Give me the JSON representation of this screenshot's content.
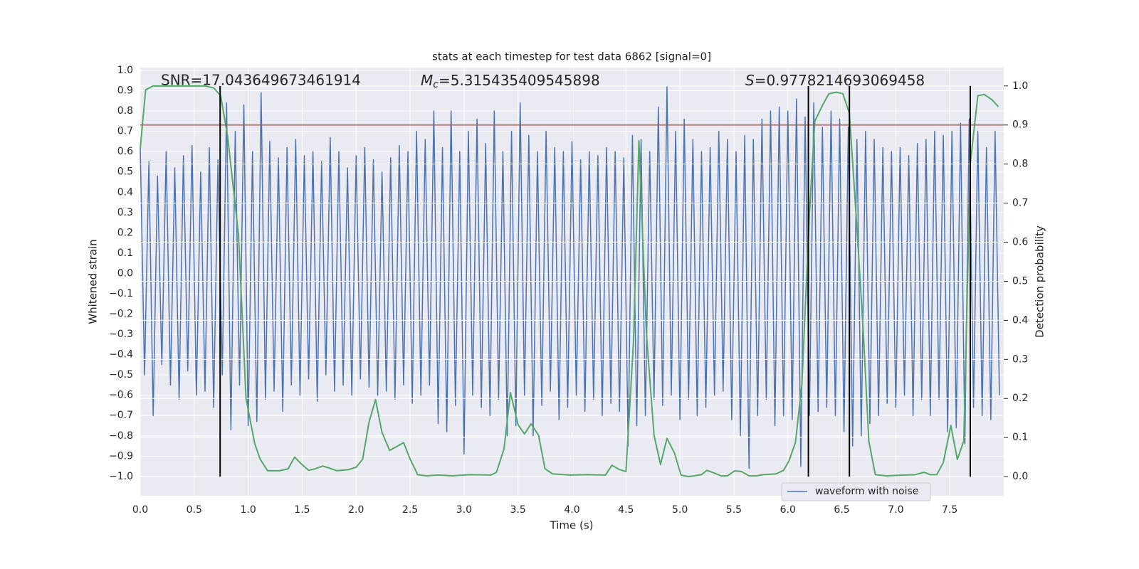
{
  "chart_data": {
    "type": "line",
    "title": "stats at each timestep for test data 6862 [signal=0]",
    "xlabel": "Time (s)",
    "ylabel": "Whitened strain",
    "y2label": "Detection probability",
    "grid": true,
    "legend": "lower right",
    "xlim": [
      0,
      8
    ],
    "ylim": [
      -1.095,
      1.014
    ],
    "y2lim": [
      -0.049,
      1.047
    ],
    "xticks": [
      {
        "value": 0,
        "label": "0.0"
      },
      {
        "value": 0.5,
        "label": "0.5"
      },
      {
        "value": 1,
        "label": "1.0"
      },
      {
        "value": 1.5,
        "label": "1.5"
      },
      {
        "value": 2,
        "label": "2.0"
      },
      {
        "value": 2.5,
        "label": "2.5"
      },
      {
        "value": 3,
        "label": "3.0"
      },
      {
        "value": 3.5,
        "label": "3.5"
      },
      {
        "value": 4,
        "label": "4.0"
      },
      {
        "value": 4.5,
        "label": "4.5"
      },
      {
        "value": 5,
        "label": "5.0"
      },
      {
        "value": 5.5,
        "label": "5.5"
      },
      {
        "value": 6,
        "label": "6.0"
      },
      {
        "value": 6.5,
        "label": "6.5"
      },
      {
        "value": 7,
        "label": "7.0"
      },
      {
        "value": 7.5,
        "label": "7.5"
      }
    ],
    "yticks": [
      {
        "value": -1,
        "label": "−1.0"
      },
      {
        "value": -0.9,
        "label": "−0.9"
      },
      {
        "value": -0.8,
        "label": "−0.8"
      },
      {
        "value": -0.7,
        "label": "−0.7"
      },
      {
        "value": -0.6,
        "label": "−0.6"
      },
      {
        "value": -0.5,
        "label": "−0.5"
      },
      {
        "value": -0.4,
        "label": "−0.4"
      },
      {
        "value": -0.3,
        "label": "−0.3"
      },
      {
        "value": -0.2,
        "label": "−0.2"
      },
      {
        "value": -0.1,
        "label": "−0.1"
      },
      {
        "value": 0,
        "label": "0.0"
      },
      {
        "value": 0.1,
        "label": "0.1"
      },
      {
        "value": 0.2,
        "label": "0.2"
      },
      {
        "value": 0.3,
        "label": "0.3"
      },
      {
        "value": 0.4,
        "label": "0.4"
      },
      {
        "value": 0.5,
        "label": "0.5"
      },
      {
        "value": 0.6,
        "label": "0.6"
      },
      {
        "value": 0.7,
        "label": "0.7"
      },
      {
        "value": 0.8,
        "label": "0.8"
      },
      {
        "value": 0.9,
        "label": "0.9"
      },
      {
        "value": 1,
        "label": "1.0"
      }
    ],
    "y2ticks": [
      {
        "value": 0,
        "label": "0.0"
      },
      {
        "value": 0.1,
        "label": "0.1"
      },
      {
        "value": 0.2,
        "label": "0.2"
      },
      {
        "value": 0.3,
        "label": "0.3"
      },
      {
        "value": 0.4,
        "label": "0.4"
      },
      {
        "value": 0.5,
        "label": "0.5"
      },
      {
        "value": 0.6,
        "label": "0.6"
      },
      {
        "value": 0.7,
        "label": "0.7"
      },
      {
        "value": 0.8,
        "label": "0.8"
      },
      {
        "value": 0.9,
        "label": "0.9"
      },
      {
        "value": 1,
        "label": "1.0"
      }
    ],
    "annotations": [
      {
        "text": "SNR=17.043649673461914"
      },
      {
        "symbol": "M",
        "subscript": "c",
        "text": "=5.315435409545898"
      },
      {
        "symbol": "S",
        "text": "=0.9778214693069458"
      }
    ],
    "threshold": {
      "y": 0.9,
      "axis": "y2",
      "color": "#c44e52"
    },
    "vlines": {
      "x": [
        0.74,
        6.19,
        6.57,
        7.69
      ],
      "ymin": 0,
      "ymax": 1,
      "axis": "y2",
      "color": "#000000"
    },
    "series": [
      {
        "name": "waveform with noise",
        "color": "#4c72b0",
        "x": [
          0,
          0.04,
          0.08,
          0.12,
          0.16,
          0.2,
          0.24,
          0.28,
          0.32,
          0.36,
          0.4,
          0.44,
          0.48,
          0.52,
          0.56,
          0.6,
          0.64,
          0.68,
          0.72,
          0.76,
          0.8,
          0.84,
          0.88,
          0.92,
          0.96,
          1,
          1.04,
          1.08,
          1.12,
          1.16,
          1.2,
          1.24,
          1.28,
          1.32,
          1.36,
          1.4,
          1.44,
          1.48,
          1.52,
          1.56,
          1.6,
          1.64,
          1.68,
          1.72,
          1.76,
          1.8,
          1.84,
          1.88,
          1.92,
          1.96,
          2,
          2.04,
          2.08,
          2.12,
          2.16,
          2.2,
          2.24,
          2.28,
          2.32,
          2.36,
          2.4,
          2.44,
          2.48,
          2.52,
          2.56,
          2.6,
          2.64,
          2.68,
          2.72,
          2.76,
          2.8,
          2.84,
          2.88,
          2.92,
          2.96,
          3,
          3.04,
          3.08,
          3.12,
          3.16,
          3.2,
          3.24,
          3.28,
          3.32,
          3.36,
          3.4,
          3.44,
          3.48,
          3.52,
          3.56,
          3.6,
          3.64,
          3.68,
          3.72,
          3.76,
          3.8,
          3.84,
          3.88,
          3.92,
          3.96,
          4,
          4.04,
          4.08,
          4.12,
          4.16,
          4.2,
          4.24,
          4.28,
          4.32,
          4.36,
          4.4,
          4.44,
          4.48,
          4.52,
          4.56,
          4.6,
          4.64,
          4.68,
          4.72,
          4.76,
          4.8,
          4.84,
          4.88,
          4.92,
          4.96,
          5,
          5.04,
          5.08,
          5.12,
          5.16,
          5.2,
          5.24,
          5.28,
          5.32,
          5.36,
          5.4,
          5.44,
          5.48,
          5.52,
          5.56,
          5.6,
          5.64,
          5.68,
          5.72,
          5.76,
          5.8,
          5.84,
          5.88,
          5.92,
          5.96,
          6,
          6.04,
          6.08,
          6.12,
          6.16,
          6.2,
          6.24,
          6.28,
          6.32,
          6.36,
          6.4,
          6.44,
          6.48,
          6.52,
          6.56,
          6.6,
          6.64,
          6.68,
          6.72,
          6.76,
          6.8,
          6.84,
          6.88,
          6.92,
          6.96,
          7,
          7.04,
          7.08,
          7.12,
          7.16,
          7.2,
          7.24,
          7.28,
          7.32,
          7.36,
          7.4,
          7.44,
          7.48,
          7.52,
          7.56,
          7.6,
          7.64,
          7.68,
          7.72,
          7.76,
          7.8,
          7.84,
          7.88,
          7.92,
          7.96
        ],
        "values": [
          0.62,
          -0.5,
          0.55,
          -0.7,
          0.48,
          -0.45,
          0.6,
          -0.55,
          0.52,
          -0.62,
          0.58,
          -0.48,
          0.63,
          -0.6,
          0.5,
          -0.58,
          0.62,
          -0.66,
          0.56,
          -0.5,
          0.84,
          -0.77,
          0.7,
          -0.55,
          0.83,
          -0.75,
          0.6,
          -0.73,
          0.89,
          -0.62,
          0.65,
          -0.58,
          0.57,
          -0.68,
          0.62,
          -0.55,
          0.66,
          -0.6,
          0.58,
          -0.52,
          0.6,
          -0.63,
          0.55,
          -0.5,
          0.67,
          -0.58,
          0.6,
          -0.55,
          0.52,
          -0.6,
          0.58,
          -0.52,
          0.62,
          -0.56,
          0.56,
          -0.6,
          0.5,
          -0.58,
          0.57,
          -0.62,
          0.63,
          -0.55,
          0.6,
          -0.64,
          0.7,
          -0.6,
          0.66,
          -0.55,
          0.8,
          -0.74,
          0.62,
          -0.78,
          0.8,
          -0.65,
          0.6,
          -0.89,
          0.7,
          -0.6,
          0.76,
          -0.66,
          0.64,
          -0.7,
          0.8,
          -0.62,
          0.6,
          -0.8,
          0.7,
          -0.75,
          0.84,
          -0.6,
          0.68,
          -0.8,
          0.6,
          -0.65,
          0.7,
          -0.58,
          0.62,
          -0.72,
          0.6,
          -0.66,
          0.65,
          -0.6,
          0.56,
          -0.68,
          0.6,
          -0.62,
          0.58,
          -0.7,
          0.62,
          -0.64,
          0.6,
          -0.68,
          0.57,
          -0.85,
          0.68,
          -0.75,
          0.66,
          -0.7,
          0.6,
          -0.62,
          0.82,
          -0.65,
          0.92,
          -0.6,
          0.7,
          -0.72,
          0.76,
          -0.62,
          0.66,
          -0.7,
          0.6,
          -0.66,
          0.62,
          -0.6,
          0.7,
          -0.58,
          0.66,
          -0.72,
          0.6,
          -0.8,
          0.68,
          -0.96,
          0.66,
          -0.7,
          0.76,
          -0.62,
          0.8,
          -0.75,
          0.82,
          -0.7,
          0.8,
          -0.72,
          0.86,
          -0.95,
          0.77,
          -0.7,
          0.84,
          -0.68,
          0.72,
          -0.66,
          0.8,
          -0.7,
          0.76,
          -0.78,
          0.72,
          -0.85,
          0.66,
          -0.8,
          0.7,
          -0.74,
          0.66,
          -0.7,
          0.62,
          -0.64,
          0.6,
          -0.66,
          0.62,
          -0.6,
          0.58,
          -0.7,
          0.64,
          -0.62,
          0.66,
          -0.7,
          0.7,
          -0.62,
          0.68,
          -0.78,
          0.7,
          -0.76,
          0.74,
          -0.84,
          0.76,
          -0.66,
          0.7,
          -0.7,
          0.62,
          -0.72,
          0.7,
          -0.6
        ]
      },
      {
        "color": "#55a868",
        "axis": "y2",
        "x": [
          0,
          0.05,
          0.12,
          0.6,
          0.68,
          0.745,
          0.81,
          0.91,
          0.98,
          1.06,
          1.11,
          1.18,
          1.29,
          1.37,
          1.43,
          1.49,
          1.56,
          1.62,
          1.69,
          1.75,
          1.82,
          1.93,
          2,
          2.06,
          2.12,
          2.18,
          2.24,
          2.31,
          2.37,
          2.44,
          2.5,
          2.57,
          2.65,
          2.76,
          2.89,
          3.05,
          3.25,
          3.3,
          3.37,
          3.43,
          3.5,
          3.56,
          3.62,
          3.69,
          3.75,
          3.82,
          3.98,
          4.14,
          4.31,
          4.37,
          4.44,
          4.5,
          4.57,
          4.62,
          4.69,
          4.76,
          4.82,
          4.88,
          4.95,
          5.01,
          5.08,
          5.2,
          5.25,
          5.32,
          5.38,
          5.44,
          5.51,
          5.57,
          5.64,
          5.71,
          5.77,
          5.89,
          5.96,
          6.01,
          6.07,
          6.13,
          6.2,
          6.25,
          6.32,
          6.38,
          6.45,
          6.51,
          6.57,
          6.64,
          6.7,
          6.75,
          6.81,
          6.91,
          7.08,
          7.18,
          7.26,
          7.32,
          7.38,
          7.44,
          7.51,
          7.57,
          7.63,
          7.69,
          7.76,
          7.82,
          7.89,
          7.95
        ],
        "values": [
          0.84,
          0.99,
          1.0,
          1.0,
          0.995,
          0.975,
          0.87,
          0.62,
          0.2,
          0.085,
          0.045,
          0.015,
          0.015,
          0.02,
          0.05,
          0.033,
          0.016,
          0.02,
          0.027,
          0.022,
          0.015,
          0.018,
          0.024,
          0.044,
          0.14,
          0.197,
          0.113,
          0.067,
          0.076,
          0.087,
          0.045,
          0.005,
          0.002,
          0.004,
          0.002,
          0.005,
          0.004,
          0.011,
          0.071,
          0.215,
          0.133,
          0.109,
          0.135,
          0.106,
          0.02,
          0.007,
          0.004,
          0.005,
          0.004,
          0.029,
          0.018,
          0.013,
          0.346,
          0.86,
          0.364,
          0.106,
          0.031,
          0.098,
          0.06,
          0.004,
          0,
          0.005,
          0.016,
          0.009,
          0.002,
          0.002,
          0.015,
          0.013,
          0.002,
          0.002,
          0.005,
          0.007,
          0.016,
          0.04,
          0.087,
          0.237,
          0.674,
          0.91,
          0.95,
          0.98,
          0.984,
          0.98,
          0.93,
          0.637,
          0.364,
          0.091,
          0.005,
          0.002,
          0.004,
          0.005,
          0.011,
          0.005,
          0.005,
          0.036,
          0.131,
          0.044,
          0.091,
          0.801,
          0.975,
          0.978,
          0.965,
          0.947
        ]
      }
    ]
  }
}
